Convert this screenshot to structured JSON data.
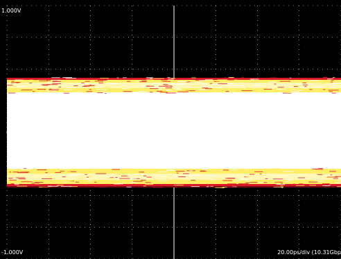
{
  "scope": {
    "top_voltage_label": "1.000V",
    "bottom_voltage_label": "-1.000V",
    "timebase_label": "20.00ps/div (10.31Gbp",
    "colors": {
      "background": "#000000",
      "grid": "#ffffff",
      "eye_hot": "#ffffff",
      "eye_warm": "#ffee66",
      "eye_edge": "#d81828"
    },
    "grid": {
      "horizontal_divisions": 8,
      "vertical_divisions": 8
    }
  }
}
